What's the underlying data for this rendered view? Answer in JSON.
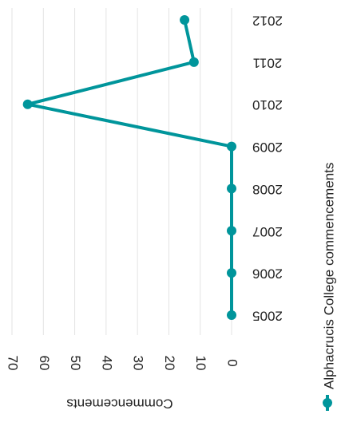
{
  "chart_data": {
    "type": "line",
    "y_label": "Commencements",
    "categories": [
      "2005",
      "2006",
      "2007",
      "2008",
      "2009",
      "2010",
      "2011",
      "2012"
    ],
    "series": [
      {
        "name": "Alphacrucis College commencements",
        "color": "#00959b",
        "values": [
          0,
          0,
          0,
          0,
          0,
          65,
          12,
          15
        ]
      }
    ],
    "ylim": [
      0,
      70
    ],
    "yticks": [
      0,
      10,
      20,
      30,
      40,
      50,
      60,
      70
    ],
    "grid": true
  }
}
